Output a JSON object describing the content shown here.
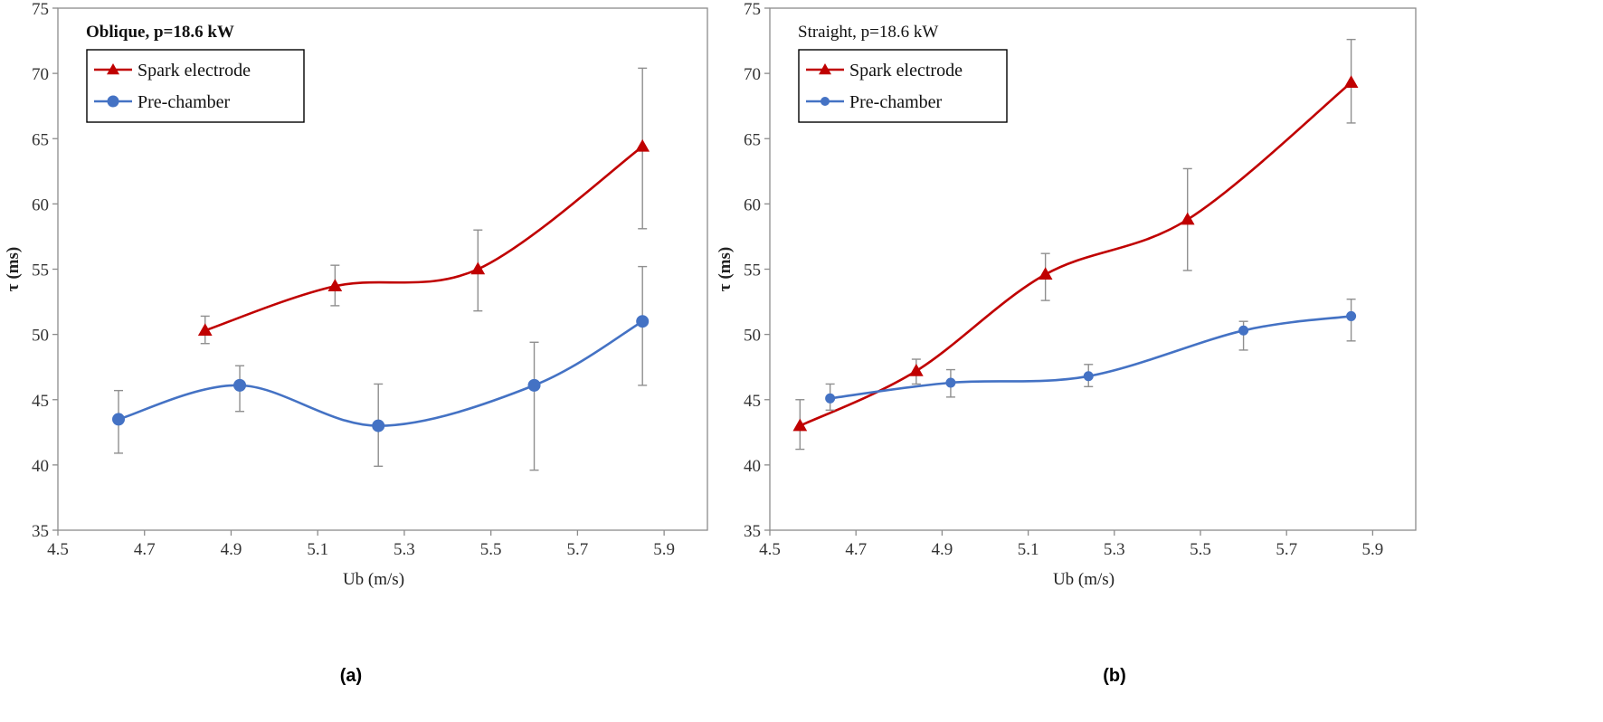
{
  "chart_data": [
    {
      "type": "line",
      "annotation": "Oblique, p=18.6 kW",
      "caption": "(a)",
      "xlabel": "Ub (m/s)",
      "ylabel": "τ (ms)",
      "xlim": [
        4.5,
        6.0
      ],
      "ylim": [
        35,
        75
      ],
      "xticks": [
        4.5,
        4.7,
        4.9,
        5.1,
        5.3,
        5.5,
        5.7,
        5.9
      ],
      "yticks": [
        35,
        40,
        45,
        50,
        55,
        60,
        65,
        70,
        75
      ],
      "grid": false,
      "legend_position": "top-left",
      "series": [
        {
          "name": "Spark electrode",
          "color": "#c00000",
          "marker": "triangle",
          "x": [
            4.84,
            5.14,
            5.47,
            5.85
          ],
          "y": [
            50.3,
            53.7,
            55.0,
            64.4
          ],
          "err_low": [
            49.3,
            52.2,
            51.8,
            58.1
          ],
          "err_high": [
            51.4,
            55.3,
            58.0,
            70.4
          ]
        },
        {
          "name": "Pre-chamber",
          "color": "#4472c4",
          "marker": "circle",
          "x": [
            4.64,
            4.92,
            5.24,
            5.6,
            5.85
          ],
          "y": [
            43.5,
            46.1,
            43.0,
            46.1,
            51.0
          ],
          "err_low": [
            40.9,
            44.1,
            39.9,
            39.6,
            46.1
          ],
          "err_high": [
            45.7,
            47.6,
            46.2,
            49.4,
            55.2
          ]
        }
      ]
    },
    {
      "type": "line",
      "annotation": "Straight, p=18.6 kW",
      "caption": "(b)",
      "xlabel": "Ub (m/s)",
      "ylabel": "τ (ms)",
      "xlim": [
        4.5,
        6.0
      ],
      "ylim": [
        35,
        75
      ],
      "xticks": [
        4.5,
        4.7,
        4.9,
        5.1,
        5.3,
        5.5,
        5.7,
        5.9
      ],
      "yticks": [
        35,
        40,
        45,
        50,
        55,
        60,
        65,
        70,
        75
      ],
      "grid": false,
      "legend_position": "top-left",
      "series": [
        {
          "name": "Spark electrode",
          "color": "#c00000",
          "marker": "triangle",
          "x": [
            4.57,
            4.84,
            5.14,
            5.47,
            5.85
          ],
          "y": [
            43.0,
            47.2,
            54.6,
            58.8,
            69.3
          ],
          "err_low": [
            41.2,
            46.2,
            52.6,
            54.9,
            66.2
          ],
          "err_high": [
            45.0,
            48.1,
            56.2,
            62.7,
            72.6
          ]
        },
        {
          "name": "Pre-chamber",
          "color": "#4472c4",
          "marker": "circle",
          "x": [
            4.64,
            4.92,
            5.24,
            5.6,
            5.85
          ],
          "y": [
            45.1,
            46.3,
            46.8,
            50.3,
            51.4
          ],
          "err_low": [
            44.2,
            45.2,
            46.0,
            48.8,
            49.5
          ],
          "err_high": [
            46.2,
            47.3,
            47.7,
            51.0,
            52.7
          ]
        }
      ]
    }
  ]
}
